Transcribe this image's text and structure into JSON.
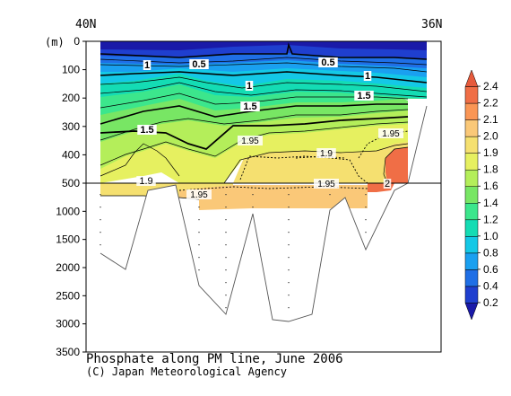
{
  "chart_data": {
    "type": "contour section",
    "title": "Phosphate along PM line, June 2006",
    "credit": "(C) Japan Meteorological Agency",
    "x_left_label": "40N",
    "x_right_label": "36N",
    "y_unit": "(m)",
    "y_axis": {
      "upper_ticks": [
        0,
        100,
        200,
        300,
        400,
        500
      ],
      "lower_ticks": [
        1000,
        1500,
        2000,
        2500,
        3000,
        3500
      ],
      "break_depth": 500,
      "inverted": true
    },
    "colorbar": {
      "levels": [
        0.2,
        0.4,
        0.6,
        0.8,
        1.0,
        1.2,
        1.4,
        1.6,
        1.8,
        1.9,
        2.0,
        2.1,
        2.2,
        2.4
      ],
      "colors": [
        "#1a1aa8",
        "#1f3fcf",
        "#1f6fe6",
        "#1aa0f0",
        "#14c8e6",
        "#14dcb4",
        "#3ce68c",
        "#78e664",
        "#b4ee5a",
        "#e6f060",
        "#f5e070",
        "#fac878",
        "#fa9655",
        "#f06e46",
        "#e65a3c"
      ],
      "tick_labels": [
        "2.4",
        "2.2",
        "2.1",
        "2.0",
        "1.9",
        "1.8",
        "1.6",
        "1.4",
        "1.2",
        "1.0",
        "0.8",
        "0.6",
        "0.4",
        "0.2"
      ]
    },
    "contour_labels": [
      {
        "text": "0.5",
        "kind": "thick"
      },
      {
        "text": "0.5",
        "kind": "thick"
      },
      {
        "text": "1",
        "kind": "thick"
      },
      {
        "text": "1",
        "kind": "thick"
      },
      {
        "text": "1",
        "kind": "thick"
      },
      {
        "text": "1.5",
        "kind": "thick"
      },
      {
        "text": "1.5",
        "kind": "thick"
      },
      {
        "text": "1.5",
        "kind": "thick"
      },
      {
        "text": "1.95",
        "kind": "dashed"
      },
      {
        "text": "1.9",
        "kind": "dashed"
      },
      {
        "text": "1.95",
        "kind": "dashed"
      },
      {
        "text": "1.95",
        "kind": "dashed"
      },
      {
        "text": "1.95",
        "kind": "dashed"
      },
      {
        "text": "2",
        "kind": "thin"
      },
      {
        "text": "1.9",
        "kind": "thin"
      }
    ]
  }
}
